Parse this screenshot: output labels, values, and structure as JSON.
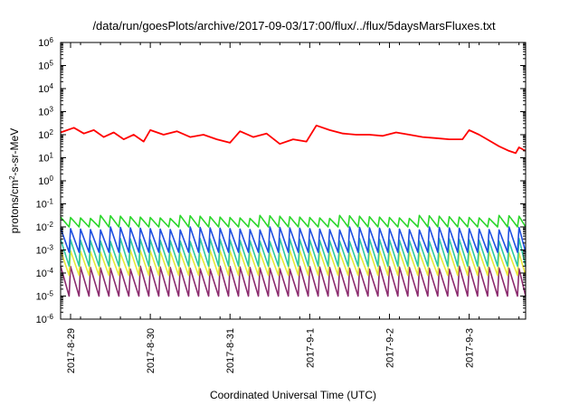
{
  "chart_data": {
    "type": "line",
    "title": "/data/run/goesPlots/archive/2017-09-03/17:00/flux/../flux/5daysMarsFluxes.txt",
    "xlabel": "Coordinated Universal Time (UTC)",
    "ylabel": "protons/cm2-s-sr-MeV",
    "ylabel_parts": {
      "main": "protons/cm",
      "sup": "2",
      "rest": "-s-sr-MeV"
    },
    "yscale": "log",
    "ylim": [
      -6,
      6
    ],
    "y_ticks": [
      {
        "exp": "-6"
      },
      {
        "exp": "-5"
      },
      {
        "exp": "-4"
      },
      {
        "exp": "-3"
      },
      {
        "exp": "-2"
      },
      {
        "exp": "-1"
      },
      {
        "exp": "0"
      },
      {
        "exp": "1"
      },
      {
        "exp": "2"
      },
      {
        "exp": "3"
      },
      {
        "exp": "4"
      },
      {
        "exp": "5"
      },
      {
        "exp": "6"
      }
    ],
    "y_tick_base": "10",
    "x_ticks": [
      "2017-8-29",
      "2017-8-30",
      "2017-8-31",
      "2017-9-1",
      "2017-9-2",
      "2017-9-3"
    ],
    "xlim": [
      "2017-08-28 21:00",
      "2017-09-03 17:00"
    ],
    "grid": false,
    "legend": false,
    "series": [
      {
        "color": "#8b2a6e",
        "period_hours": 3,
        "points": [
          [
            "2017-08-29 00:00",
            -3.7
          ],
          [
            "2017-08-30 00:00",
            -3.7
          ],
          [
            "2017-08-31 00:00",
            -3.7
          ],
          [
            "2017-09-01 00:00",
            -3.7
          ],
          [
            "2017-09-02 00:00",
            -3.7
          ],
          [
            "2017-09-03 00:00",
            -3.7
          ]
        ],
        "low_points": [
          [
            "2017-08-29 00:00",
            -5.0
          ],
          [
            "2017-08-30 00:00",
            -5.0
          ],
          [
            "2017-08-31 00:00",
            -5.0
          ],
          [
            "2017-09-01 00:00",
            -5.0
          ],
          [
            "2017-09-02 00:00",
            -5.0
          ],
          [
            "2017-09-03 00:00",
            -5.0
          ]
        ]
      },
      {
        "color": "#e8e83a",
        "period_hours": 3,
        "points": [
          [
            "2017-08-29 00:00",
            -3.0
          ],
          [
            "2017-09-03 17:00",
            -3.0
          ]
        ],
        "low_points": [
          [
            "2017-08-29 00:00",
            -4.1
          ],
          [
            "2017-09-03 17:00",
            -4.1
          ]
        ]
      },
      {
        "color": "#2ec8a0",
        "period_hours": 3,
        "points": [
          [
            "2017-08-29 00:00",
            -2.5
          ],
          [
            "2017-09-03 17:00",
            -2.5
          ]
        ],
        "low_points": [
          [
            "2017-08-29 00:00",
            -3.7
          ],
          [
            "2017-09-03 17:00",
            -3.7
          ]
        ]
      },
      {
        "color": "#1f4fe0",
        "period_hours": 3,
        "points": [
          [
            "2017-08-29 00:00",
            -2.0
          ],
          [
            "2017-09-03 17:00",
            -2.0
          ]
        ],
        "low_points": [
          [
            "2017-08-29 00:00",
            -3.1
          ],
          [
            "2017-09-03 17:00",
            -3.1
          ]
        ]
      },
      {
        "color": "#2bd62b",
        "period_hours": 3,
        "points": [
          [
            "2017-08-29 00:00",
            -1.5
          ],
          [
            "2017-09-03 17:00",
            -1.5
          ]
        ],
        "low_points": [
          [
            "2017-08-29 00:00",
            -2.0
          ],
          [
            "2017-09-03 17:00",
            -2.0
          ]
        ]
      },
      {
        "color": "#ff0000",
        "points": [
          [
            "2017-08-28 21:00",
            2.1
          ],
          [
            "2017-08-29 01:00",
            2.3
          ],
          [
            "2017-08-29 04:00",
            2.05
          ],
          [
            "2017-08-29 07:00",
            2.2
          ],
          [
            "2017-08-29 10:00",
            1.9
          ],
          [
            "2017-08-29 13:00",
            2.1
          ],
          [
            "2017-08-29 16:00",
            1.8
          ],
          [
            "2017-08-29 19:00",
            2.0
          ],
          [
            "2017-08-29 22:00",
            1.7
          ],
          [
            "2017-08-30 00:00",
            2.2
          ],
          [
            "2017-08-30 04:00",
            2.0
          ],
          [
            "2017-08-30 08:00",
            2.15
          ],
          [
            "2017-08-30 12:00",
            1.9
          ],
          [
            "2017-08-30 16:00",
            2.0
          ],
          [
            "2017-08-30 20:00",
            1.8
          ],
          [
            "2017-08-31 00:00",
            1.65
          ],
          [
            "2017-08-31 03:00",
            2.15
          ],
          [
            "2017-08-31 07:00",
            1.9
          ],
          [
            "2017-08-31 11:00",
            2.05
          ],
          [
            "2017-08-31 15:00",
            1.6
          ],
          [
            "2017-08-31 19:00",
            1.8
          ],
          [
            "2017-08-31 23:00",
            1.7
          ],
          [
            "2017-09-01 02:00",
            2.4
          ],
          [
            "2017-09-01 06:00",
            2.2
          ],
          [
            "2017-09-01 10:00",
            2.05
          ],
          [
            "2017-09-01 14:00",
            2.0
          ],
          [
            "2017-09-01 18:00",
            2.0
          ],
          [
            "2017-09-01 22:00",
            1.95
          ],
          [
            "2017-09-02 02:00",
            2.1
          ],
          [
            "2017-09-02 06:00",
            2.0
          ],
          [
            "2017-09-02 10:00",
            1.9
          ],
          [
            "2017-09-02 14:00",
            1.85
          ],
          [
            "2017-09-02 18:00",
            1.8
          ],
          [
            "2017-09-02 22:00",
            1.8
          ],
          [
            "2017-09-03 00:00",
            2.2
          ],
          [
            "2017-09-03 03:00",
            2.0
          ],
          [
            "2017-09-03 06:00",
            1.75
          ],
          [
            "2017-09-03 09:00",
            1.5
          ],
          [
            "2017-09-03 12:00",
            1.3
          ],
          [
            "2017-09-03 14:00",
            1.2
          ],
          [
            "2017-09-03 15:00",
            1.45
          ],
          [
            "2017-09-03 17:00",
            1.3
          ]
        ]
      }
    ]
  }
}
